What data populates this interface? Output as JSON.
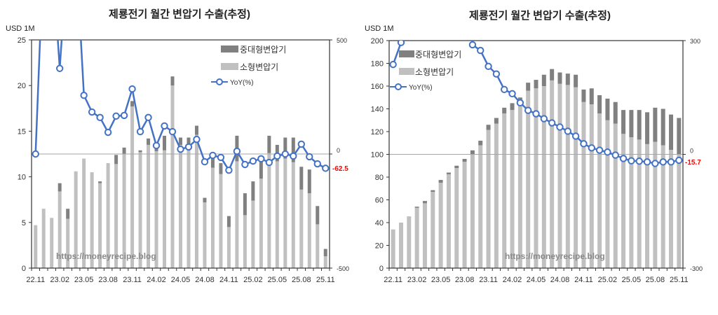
{
  "charts": [
    {
      "id": "left",
      "title": "제룡전기 월간 변압기 수출(추정)",
      "unit_label": "USD 1M",
      "watermark": "https://moneyrecipe.blog",
      "legend": {
        "large": "중대형변압기",
        "small": "소형변압기",
        "yoy": "YoY(%)"
      },
      "last_yoy_label": "-62.5"
    },
    {
      "id": "right",
      "title": "제룡전기 월간 변압기 수출(추정)",
      "unit_label": "USD 1M",
      "watermark": "https://moneyrecipe.blog",
      "legend": {
        "large": "중대형변압기",
        "small": "소형변압기",
        "yoy": "YoY(%)"
      },
      "last_yoy_label": "-15.7"
    }
  ],
  "colors": {
    "large": "#808080",
    "small": "#c0c0c0",
    "yoy_line": "#4472c4",
    "last_label": "#ff0000",
    "axis": "#333333",
    "zero_line": "#a6a6a6"
  },
  "chart_data": [
    {
      "type": "bar",
      "stacked": true,
      "title": "제룡전기 월간 변압기 수출(추정)",
      "xlabel": "",
      "ylabel": "USD 1M",
      "y2label": "YoY(%)",
      "ylim": [
        0,
        25
      ],
      "y2lim": [
        -500,
        500
      ],
      "yticks": [
        0,
        5,
        10,
        15,
        20,
        25
      ],
      "y2ticks": [
        -500,
        0,
        500
      ],
      "xtick_labels": [
        "22.11",
        "23.02",
        "23.05",
        "23.08",
        "23.11",
        "24.02",
        "24.05",
        "24.08",
        "24.11",
        "25.02",
        "25.05",
        "25.08",
        "25.11"
      ],
      "legend_position": "top-right",
      "categories": [
        "22.11",
        "22.12",
        "23.01",
        "23.02",
        "23.03",
        "23.04",
        "23.05",
        "23.06",
        "23.07",
        "23.08",
        "23.09",
        "23.10",
        "23.11",
        "23.12",
        "24.01",
        "24.02",
        "24.03",
        "24.04",
        "24.05",
        "24.06",
        "24.07",
        "24.08",
        "24.09",
        "24.10",
        "24.11",
        "24.12",
        "25.01",
        "25.02",
        "25.03",
        "25.04",
        "25.05",
        "25.06",
        "25.07",
        "25.08",
        "25.09",
        "25.10",
        "25.11"
      ],
      "series": [
        {
          "name": "소형변압기",
          "kind": "bar",
          "values": [
            4.7,
            6.5,
            5.5,
            8.4,
            5.4,
            10.6,
            12.0,
            10.5,
            9.3,
            11.5,
            11.4,
            12.5,
            17.7,
            12.7,
            13.5,
            12.8,
            12.9,
            20.0,
            13.5,
            13.5,
            14.6,
            7.2,
            11.0,
            10.3,
            4.5,
            11.7,
            5.8,
            7.4,
            9.8,
            12.6,
            11.7,
            12.0,
            11.6,
            8.6,
            8.2,
            4.8,
            1.3
          ]
        },
        {
          "name": "중대형변압기",
          "kind": "bar",
          "values": [
            0,
            0,
            0,
            0.9,
            1.1,
            0,
            0,
            0,
            0.2,
            0,
            1.0,
            0.7,
            0.6,
            0.2,
            0.7,
            0.5,
            1.6,
            1.0,
            0.8,
            0.8,
            1.0,
            0.5,
            1.0,
            1.2,
            1.2,
            2.8,
            2.4,
            2.1,
            2.2,
            1.9,
            1.8,
            2.3,
            2.7,
            2.5,
            2.6,
            2.0,
            0.8
          ]
        },
        {
          "name": "YoY(%)",
          "kind": "line",
          "axis": "right",
          "values": [
            0,
            900,
            900,
            375,
            900,
            900,
            257,
            184,
            160,
            95,
            166,
            169,
            285,
            98,
            160,
            37,
            123,
            98,
            21,
            31,
            64,
            -34,
            -6,
            -15,
            -71,
            12,
            -46,
            -31,
            -21,
            -37,
            -9,
            0,
            -9,
            43,
            -12,
            -43,
            -62.5
          ]
        }
      ],
      "annotations": [
        "-62.5"
      ]
    },
    {
      "type": "bar",
      "stacked": true,
      "title": "제룡전기 월간 변압기 수출(추정)",
      "xlabel": "",
      "ylabel": "USD 1M",
      "y2label": "YoY(%)",
      "ylim": [
        0,
        200
      ],
      "y2lim": [
        -300,
        300
      ],
      "yticks": [
        0,
        20,
        40,
        60,
        80,
        100,
        120,
        140,
        160,
        180,
        200
      ],
      "y2ticks": [
        -300,
        0,
        300
      ],
      "xtick_labels": [
        "22.11",
        "23.02",
        "23.05",
        "23.08",
        "23.11",
        "24.02",
        "24.05",
        "24.08",
        "24.11",
        "25.02",
        "25.05",
        "25.08",
        "25.11"
      ],
      "legend_position": "top-left",
      "categories": [
        "22.11",
        "22.12",
        "23.01",
        "23.02",
        "23.03",
        "23.04",
        "23.05",
        "23.06",
        "23.07",
        "23.08",
        "23.09",
        "23.10",
        "23.11",
        "23.12",
        "24.01",
        "24.02",
        "24.03",
        "24.04",
        "24.05",
        "24.06",
        "24.07",
        "24.08",
        "24.09",
        "24.10",
        "24.11",
        "24.12",
        "25.01",
        "25.02",
        "25.03",
        "25.04",
        "25.05",
        "25.06",
        "25.07",
        "25.08",
        "25.09",
        "25.10",
        "25.11"
      ],
      "series": [
        {
          "name": "소형변압기",
          "kind": "bar",
          "values": [
            34,
            40,
            45.5,
            53,
            57,
            67,
            75,
            82.5,
            88,
            93.5,
            100,
            108,
            121.5,
            127,
            136,
            139,
            146,
            156,
            158,
            160,
            165,
            162,
            161,
            159,
            146,
            144,
            136,
            130,
            127,
            118,
            115,
            113,
            109,
            111,
            108,
            104,
            100
          ]
        },
        {
          "name": "중대형변압기",
          "kind": "bar",
          "values": [
            0,
            0,
            0,
            1,
            2,
            1.5,
            2.5,
            1.5,
            2,
            2.5,
            3.5,
            4,
            4.5,
            5,
            5,
            6,
            4,
            7,
            7.5,
            10,
            10,
            10,
            10,
            11,
            11,
            14,
            16,
            19,
            19,
            21,
            24,
            26,
            28,
            30,
            32,
            31,
            32
          ]
        },
        {
          "name": "YoY(%)",
          "kind": "line",
          "axis": "right",
          "values": [
            237,
            295,
            600,
            600,
            600,
            600,
            600,
            600,
            600,
            600,
            289,
            274,
            232,
            212,
            171,
            160,
            136,
            116,
            107,
            94,
            83,
            72,
            61,
            48,
            28,
            17,
            11,
            6,
            -2,
            -11,
            -17,
            -18,
            -20,
            -24,
            -20,
            -20,
            -15.7
          ]
        }
      ],
      "annotations": [
        "-15.7"
      ]
    }
  ]
}
